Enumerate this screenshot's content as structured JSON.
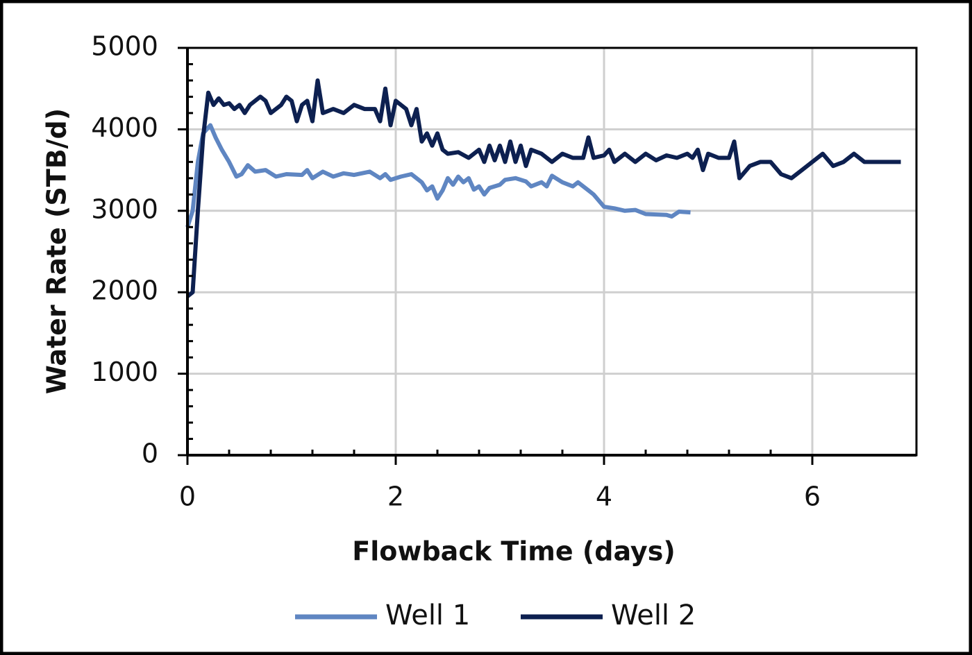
{
  "chart_data": {
    "type": "line",
    "x_label": "Flowback Time (days)",
    "y_label": "Water Rate (STB/d)",
    "xlim": [
      0,
      7
    ],
    "xticks": [
      0,
      2,
      4,
      6
    ],
    "ylim": [
      0,
      5000
    ],
    "yticks": [
      0,
      1000,
      2000,
      3000,
      4000,
      5000
    ],
    "grid": true,
    "legend": "bottom",
    "series": [
      {
        "name": "Well 1",
        "color": "#5f86c2",
        "x": [
          0,
          0.05,
          0.1,
          0.15,
          0.22,
          0.27,
          0.33,
          0.4,
          0.47,
          0.52,
          0.58,
          0.65,
          0.75,
          0.85,
          0.95,
          1.1,
          1.15,
          1.2,
          1.3,
          1.4,
          1.5,
          1.6,
          1.75,
          1.85,
          1.9,
          1.95,
          2.05,
          2.15,
          2.25,
          2.3,
          2.35,
          2.4,
          2.45,
          2.5,
          2.55,
          2.6,
          2.65,
          2.7,
          2.75,
          2.8,
          2.85,
          2.9,
          3.0,
          3.05,
          3.15,
          3.25,
          3.3,
          3.4,
          3.45,
          3.5,
          3.6,
          3.7,
          3.75,
          3.85,
          3.9,
          4.0,
          4.1,
          4.2,
          4.3,
          4.4,
          4.6,
          4.65,
          4.72,
          4.83
        ],
        "values": [
          2800,
          3000,
          3600,
          3950,
          4050,
          3900,
          3750,
          3600,
          3420,
          3450,
          3560,
          3480,
          3500,
          3420,
          3450,
          3440,
          3500,
          3400,
          3480,
          3420,
          3460,
          3440,
          3480,
          3400,
          3450,
          3380,
          3420,
          3450,
          3350,
          3250,
          3300,
          3150,
          3250,
          3400,
          3320,
          3420,
          3350,
          3400,
          3260,
          3300,
          3200,
          3280,
          3320,
          3380,
          3400,
          3360,
          3300,
          3350,
          3300,
          3430,
          3350,
          3300,
          3350,
          3250,
          3200,
          3050,
          3030,
          3000,
          3010,
          2960,
          2950,
          2930,
          2990,
          2980
        ]
      },
      {
        "name": "Well 2",
        "color": "#0d2050",
        "x": [
          0,
          0.05,
          0.1,
          0.15,
          0.2,
          0.25,
          0.3,
          0.35,
          0.4,
          0.45,
          0.5,
          0.55,
          0.6,
          0.7,
          0.75,
          0.8,
          0.9,
          0.95,
          1.0,
          1.05,
          1.1,
          1.15,
          1.2,
          1.25,
          1.3,
          1.4,
          1.5,
          1.6,
          1.7,
          1.8,
          1.85,
          1.9,
          1.95,
          2.0,
          2.05,
          2.1,
          2.15,
          2.2,
          2.25,
          2.3,
          2.35,
          2.4,
          2.45,
          2.5,
          2.6,
          2.7,
          2.8,
          2.85,
          2.9,
          2.95,
          3.0,
          3.05,
          3.1,
          3.15,
          3.2,
          3.25,
          3.3,
          3.4,
          3.5,
          3.6,
          3.7,
          3.8,
          3.85,
          3.9,
          4.0,
          4.05,
          4.1,
          4.2,
          4.3,
          4.4,
          4.5,
          4.6,
          4.7,
          4.8,
          4.85,
          4.9,
          4.95,
          5.0,
          5.1,
          5.2,
          5.25,
          5.3,
          5.4,
          5.5,
          5.6,
          5.7,
          5.8,
          5.9,
          6.0,
          6.1,
          6.2,
          6.3,
          6.4,
          6.5,
          6.6,
          6.7,
          6.85
        ],
        "values": [
          1950,
          2000,
          3000,
          3900,
          4450,
          4300,
          4380,
          4300,
          4320,
          4250,
          4300,
          4200,
          4300,
          4400,
          4350,
          4200,
          4300,
          4400,
          4350,
          4100,
          4300,
          4350,
          4100,
          4600,
          4200,
          4250,
          4200,
          4300,
          4250,
          4250,
          4100,
          4500,
          4050,
          4350,
          4300,
          4250,
          4050,
          4250,
          3850,
          3950,
          3800,
          3950,
          3750,
          3700,
          3720,
          3650,
          3750,
          3600,
          3800,
          3620,
          3800,
          3600,
          3850,
          3600,
          3800,
          3550,
          3750,
          3700,
          3600,
          3700,
          3650,
          3650,
          3900,
          3650,
          3680,
          3750,
          3600,
          3700,
          3600,
          3700,
          3620,
          3680,
          3650,
          3700,
          3650,
          3750,
          3500,
          3700,
          3650,
          3650,
          3850,
          3400,
          3550,
          3600,
          3600,
          3450,
          3400,
          3500,
          3600,
          3700,
          3550,
          3600,
          3700,
          3600,
          3600,
          3600,
          3600
        ]
      }
    ]
  }
}
